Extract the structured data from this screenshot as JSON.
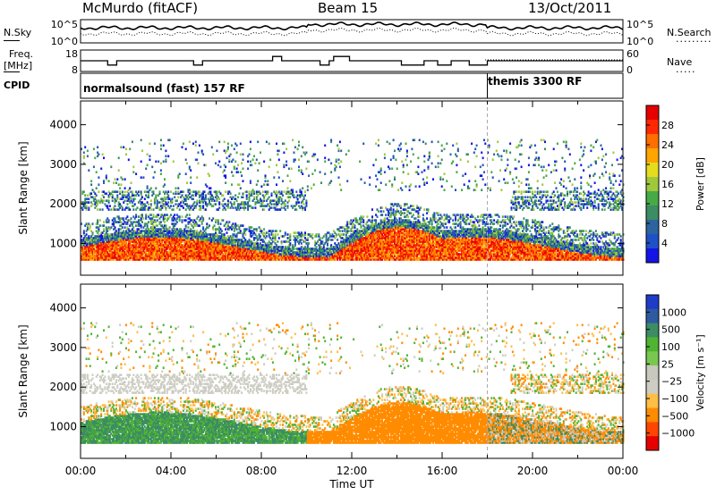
{
  "header": {
    "station": "McMurdo (fitACF)",
    "beam": "Beam 15",
    "date": "13/Oct/2011"
  },
  "side_labels": {
    "nsky": "N.Sky",
    "freq": "Freq.",
    "freq_unit": "[MHz]",
    "cpid": "CPID",
    "nsearch": "N.Search",
    "nave": "Nave"
  },
  "cpid_segments": [
    {
      "label": "normalsound (fast) 157 RF"
    },
    {
      "label": "themis 3300 RF"
    }
  ],
  "colors": {
    "power_scale": [
      "#1414e6",
      "#1e50c8",
      "#2d64a0",
      "#3c8c64",
      "#46aa46",
      "#a0c83c",
      "#e6dc1e",
      "#ffa500",
      "#ff6e00",
      "#ff2800",
      "#e60000"
    ],
    "velocity_scale": [
      "#e60000",
      "#ff4600",
      "#ff8c00",
      "#ffbe46",
      "#cdcdc3",
      "#c8c8be",
      "#78c850",
      "#50b432",
      "#3c8c64",
      "#2d5aa0",
      "#1e3cc8"
    ]
  },
  "chart_data": [
    {
      "type": "line",
      "name": "noise-panel",
      "ylabels_left": [
        "10^5",
        "10^0"
      ],
      "ylabels_right": [
        "10^5",
        "10^0"
      ],
      "description_series": [
        "N.Sky",
        "N.Search"
      ]
    },
    {
      "type": "line",
      "name": "freq-nave-panel",
      "ylim_left": [
        8,
        18
      ],
      "yticks_left": [
        "18",
        "8"
      ],
      "ylim_right": [
        0,
        60
      ],
      "yticks_right": [
        "60",
        "0"
      ],
      "series": [
        {
          "name": "Freq.",
          "x": [
            0,
            1.2,
            1.2,
            1.6,
            1.6,
            5.0,
            5.0,
            5.4,
            5.4,
            8.5,
            8.5,
            8.9,
            8.9,
            10.6,
            10.6,
            11.0,
            11.0,
            11.2,
            11.2,
            11.9,
            11.9,
            14.2,
            14.2,
            15.2,
            15.2,
            15.8,
            15.8,
            16.4,
            16.4,
            17.2,
            17.2,
            18.0,
            18.0,
            24
          ],
          "y": [
            13,
            13,
            11,
            11,
            13,
            13,
            11,
            11,
            13,
            13,
            15,
            15,
            13,
            13,
            11,
            11,
            13,
            13,
            15,
            15,
            13,
            13,
            11,
            11,
            13,
            13,
            11,
            11,
            13,
            13,
            11,
            11,
            13,
            13
          ]
        }
      ]
    },
    {
      "type": "heatmap",
      "name": "power",
      "title": "",
      "xlabel": "",
      "ylabel": "Slant Range [km]",
      "xlim": [
        0,
        24
      ],
      "ylim": [
        200,
        4600
      ],
      "yticks": [
        "1000",
        "2000",
        "3000",
        "4000"
      ],
      "colorbar_label": "Power [dB]",
      "colorbar_ticks": [
        "28",
        "24",
        "20",
        "16",
        "12",
        "8",
        "4"
      ],
      "clim": [
        0,
        30
      ]
    },
    {
      "type": "heatmap",
      "name": "velocity",
      "title": "",
      "xlabel": "Time UT",
      "ylabel": "Slant Range [km]",
      "xlim": [
        0,
        24
      ],
      "ylim": [
        200,
        4600
      ],
      "yticks": [
        "1000",
        "2000",
        "3000",
        "4000"
      ],
      "xticks": [
        "00:00",
        "04:00",
        "08:00",
        "12:00",
        "16:00",
        "20:00",
        "00:00"
      ],
      "colorbar_label": "Velocity [m s⁻¹]",
      "colorbar_ticks": [
        "1000",
        "500",
        "100",
        "25",
        "−25",
        "−100",
        "−500",
        "−1000"
      ],
      "clim": [
        -1200,
        1200
      ]
    }
  ]
}
